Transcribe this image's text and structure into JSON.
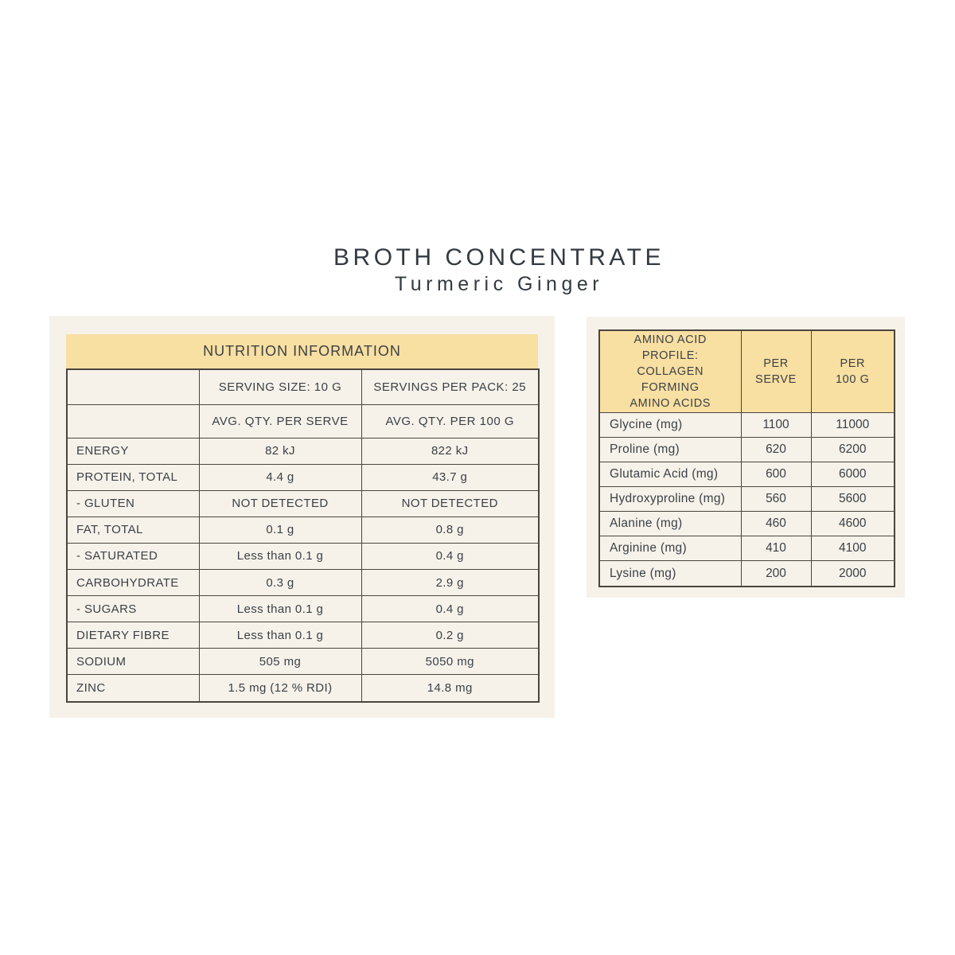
{
  "page_title": {
    "title": "BROTH CONCENTRATE",
    "subtitle": "Turmeric Ginger"
  },
  "colors": {
    "accent_yellow": "#f8dfa2",
    "panel_cream": "#f6f2ea",
    "border_dark": "#4a463f",
    "text_dark": "#3b4146",
    "page_background": "#ffffff"
  },
  "nutrition_table": {
    "band_title": "NUTRITION INFORMATION",
    "serving_size": "SERVING SIZE: 10 G",
    "servings_per_pack": "SERVINGS PER PACK: 25",
    "col_serve": "AVG. QTY. PER SERVE",
    "col_100g": "AVG. QTY. PER 100 G",
    "rows": [
      {
        "label": "ENERGY",
        "per_serve": "82 kJ",
        "per_100g": "822 kJ"
      },
      {
        "label": "PROTEIN, TOTAL",
        "per_serve": "4.4 g",
        "per_100g": "43.7 g"
      },
      {
        "label": "- GLUTEN",
        "per_serve": "NOT DETECTED",
        "per_100g": "NOT DETECTED"
      },
      {
        "label": "FAT, TOTAL",
        "per_serve": "0.1 g",
        "per_100g": "0.8 g"
      },
      {
        "label": "- SATURATED",
        "per_serve": "Less than 0.1 g",
        "per_100g": "0.4 g"
      },
      {
        "label": "CARBOHYDRATE",
        "per_serve": "0.3 g",
        "per_100g": "2.9 g"
      },
      {
        "label": "- SUGARS",
        "per_serve": "Less than 0.1 g",
        "per_100g": "0.4 g"
      },
      {
        "label": "DIETARY FIBRE",
        "per_serve": "Less than 0.1 g",
        "per_100g": "0.2 g"
      },
      {
        "label": "SODIUM",
        "per_serve": "505 mg",
        "per_100g": "5050 mg"
      },
      {
        "label": "ZINC",
        "per_serve": "1.5 mg (12 % RDI)",
        "per_100g": "14.8 mg"
      }
    ]
  },
  "amino_table": {
    "header_lines": [
      "AMINO ACID",
      "PROFILE:",
      "COLLAGEN",
      "FORMING",
      "AMINO ACIDS"
    ],
    "col_serve_lines": [
      "PER",
      "SERVE"
    ],
    "col_100g_lines": [
      "PER",
      "100 G"
    ],
    "rows": [
      {
        "label": "Glycine (mg)",
        "per_serve": "1100",
        "per_100g": "11000"
      },
      {
        "label": "Proline (mg)",
        "per_serve": "620",
        "per_100g": "6200"
      },
      {
        "label": "Glutamic Acid (mg)",
        "per_serve": "600",
        "per_100g": "6000"
      },
      {
        "label": "Hydroxyproline (mg)",
        "per_serve": "560",
        "per_100g": "5600"
      },
      {
        "label": "Alanine (mg)",
        "per_serve": "460",
        "per_100g": "4600"
      },
      {
        "label": "Arginine (mg)",
        "per_serve": "410",
        "per_100g": "4100"
      },
      {
        "label": "Lysine (mg)",
        "per_serve": "200",
        "per_100g": "2000"
      }
    ]
  }
}
